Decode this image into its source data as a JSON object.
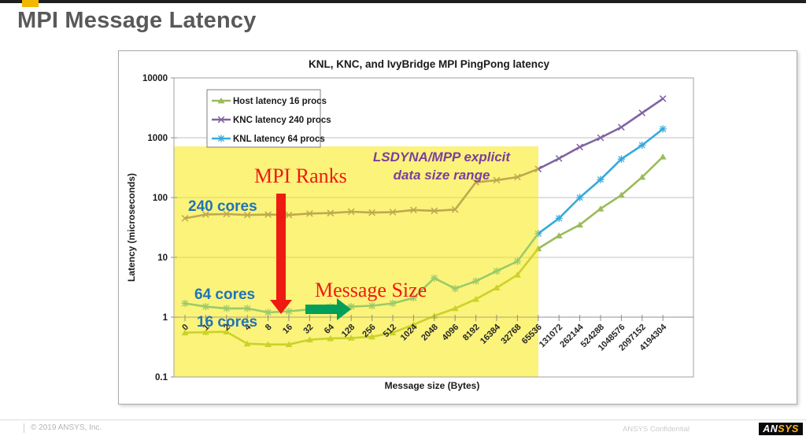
{
  "slide": {
    "title": "MPI Message Latency",
    "footer_left": "© 2019 ANSYS, Inc.",
    "footer_right": "ANSYS Confidential",
    "logo_an": "AN",
    "logo_sys": "SYS"
  },
  "chart_data": {
    "type": "line",
    "title": "KNL, KNC, and IvyBridge  MPI PingPong latency",
    "xlabel": "Message size (Bytes)",
    "ylabel": "Latency (microseconds)",
    "y_scale": "log",
    "ylim": [
      0.1,
      10000
    ],
    "y_ticks": [
      10000,
      1000,
      100,
      10,
      1,
      0.1
    ],
    "grid": "horizontal",
    "legend_position": "inside-top-left",
    "categories": [
      "0",
      "1",
      "2",
      "4",
      "8",
      "16",
      "32",
      "64",
      "128",
      "256",
      "512",
      "1024",
      "2048",
      "4096",
      "8192",
      "16384",
      "32768",
      "65536",
      "131072",
      "262144",
      "524288",
      "1048576",
      "2097152",
      "4194304"
    ],
    "series": [
      {
        "name": "Host latency 16 procs",
        "color": "#9bbb59",
        "marker": "triangle",
        "values": [
          0.55,
          0.56,
          0.57,
          0.36,
          0.35,
          0.35,
          0.42,
          0.44,
          0.45,
          0.47,
          0.55,
          0.75,
          1.05,
          1.4,
          2.0,
          3.1,
          5.1,
          14,
          23,
          35,
          65,
          110,
          220,
          480
        ]
      },
      {
        "name": "KNC latency 240 procs",
        "color": "#8064a2",
        "marker": "x",
        "values": [
          45,
          52,
          53,
          51,
          52,
          51,
          54,
          55,
          58,
          56,
          57,
          62,
          60,
          63,
          180,
          195,
          220,
          300,
          450,
          700,
          1000,
          1500,
          2600,
          4500
        ]
      },
      {
        "name": "KNL latency 64 procs",
        "color": "#35aadc",
        "marker": "asterisk",
        "values": [
          1.7,
          1.5,
          1.4,
          1.4,
          1.2,
          1.25,
          1.35,
          1.5,
          1.5,
          1.55,
          1.7,
          2.1,
          4.5,
          3.0,
          4.0,
          5.9,
          8.6,
          25,
          45,
          100,
          200,
          440,
          750,
          1400
        ]
      }
    ],
    "highlight_region": {
      "x_from": "0",
      "x_to": "65536",
      "y_from": 0.1,
      "y_to": 700,
      "color": "#f8e800"
    }
  },
  "annotations": {
    "mpi_ranks": "MPI Ranks",
    "message_size": "Message Size",
    "region_label_1": "LSDYNA/MPP explicit",
    "region_label_2": "data size range",
    "cores_240": "240 cores",
    "cores_64": "64 cores",
    "cores_16": "16 cores",
    "colors": {
      "red": "#ee1a12",
      "green_arrow": "#00a05a",
      "purple": "#7b3f9e",
      "blue_label": "#2173b8"
    }
  }
}
